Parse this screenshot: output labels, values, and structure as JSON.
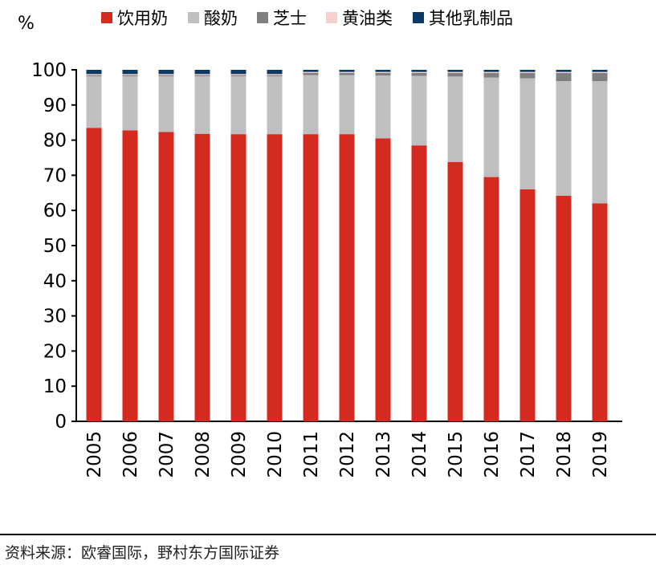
{
  "chart_data": {
    "type": "bar",
    "stacked": true,
    "ylabel": "%",
    "ylim": [
      0,
      100
    ],
    "yticks": [
      0,
      10,
      20,
      30,
      40,
      50,
      60,
      70,
      80,
      90,
      100
    ],
    "grid": false,
    "legend": "top",
    "categories": [
      "2005",
      "2006",
      "2007",
      "2008",
      "2009",
      "2010",
      "2011",
      "2012",
      "2013",
      "2014",
      "2015",
      "2016",
      "2017",
      "2018",
      "2019"
    ],
    "series": [
      {
        "name": "饮用奶",
        "color": "#D42A20",
        "values": [
          83.5,
          82.8,
          82.3,
          81.8,
          81.7,
          81.7,
          81.7,
          81.7,
          80.5,
          78.5,
          73.8,
          69.5,
          66.0,
          64.2,
          62.0
        ]
      },
      {
        "name": "酸奶",
        "color": "#BFBFBF",
        "values": [
          14.7,
          15.4,
          15.9,
          16.4,
          16.5,
          16.5,
          16.8,
          16.8,
          17.9,
          19.8,
          24.3,
          28.3,
          31.6,
          32.6,
          34.8
        ]
      },
      {
        "name": "芝士",
        "color": "#7F7F7F",
        "values": [
          0.3,
          0.3,
          0.3,
          0.3,
          0.3,
          0.3,
          0.6,
          0.6,
          0.7,
          0.8,
          1.0,
          1.3,
          1.5,
          2.3,
          2.3
        ]
      },
      {
        "name": "黄油类",
        "color": "#F6CFCF",
        "values": [
          0.3,
          0.3,
          0.3,
          0.3,
          0.3,
          0.3,
          0.3,
          0.3,
          0.3,
          0.3,
          0.3,
          0.3,
          0.3,
          0.3,
          0.3
        ]
      },
      {
        "name": "其他乳制品",
        "color": "#0B3A66",
        "values": [
          1.2,
          1.2,
          1.2,
          1.2,
          1.2,
          1.2,
          0.6,
          0.6,
          0.6,
          0.6,
          0.6,
          0.6,
          0.6,
          0.6,
          0.6
        ]
      }
    ]
  },
  "source": "资料来源：欧睿国际，野村东方国际证券"
}
